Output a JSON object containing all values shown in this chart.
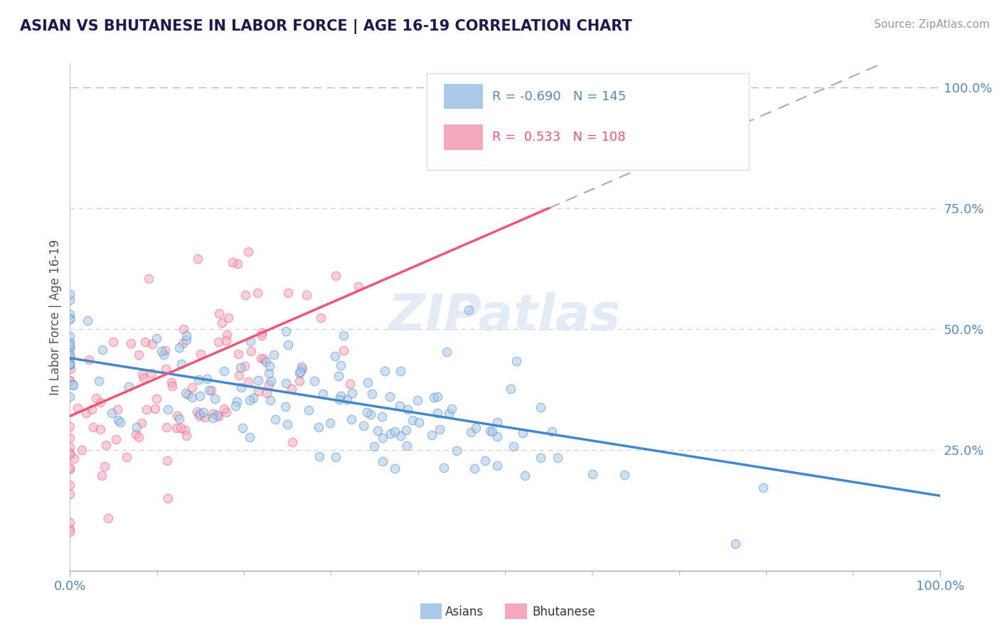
{
  "title": "ASIAN VS BHUTANESE IN LABOR FORCE | AGE 16-19 CORRELATION CHART",
  "source_text": "Source: ZipAtlas.com",
  "ylabel": "In Labor Force | Age 16-19",
  "xlim": [
    0.0,
    1.0
  ],
  "ylim": [
    0.0,
    1.05
  ],
  "xtick_labels": [
    "0.0%",
    "100.0%"
  ],
  "ytick_labels": [
    "25.0%",
    "50.0%",
    "75.0%",
    "100.0%"
  ],
  "ytick_positions": [
    0.25,
    0.5,
    0.75,
    1.0
  ],
  "title_color": "#1a1a4e",
  "axis_color": "#5588bb",
  "background_color": "#ffffff",
  "grid_color": "#cccccc",
  "asian_R": -0.69,
  "asian_N": 145,
  "bhutanese_R": 0.533,
  "bhutanese_N": 108,
  "asian_scatter_color": "#aac8e8",
  "bhutanese_scatter_color": "#f4a8bc",
  "asian_line_color": "#4488cc",
  "bhutanese_line_color": "#ee5577",
  "asian_line_y0": 0.44,
  "asian_line_y1": 0.155,
  "bhut_line_y0": 0.32,
  "bhut_line_y1": 0.75,
  "bhut_line_x0": 0.0,
  "bhut_line_x1": 0.55,
  "dot_size": 80,
  "dot_alpha": 0.55,
  "dot_lw": 0.8,
  "seed": 42
}
